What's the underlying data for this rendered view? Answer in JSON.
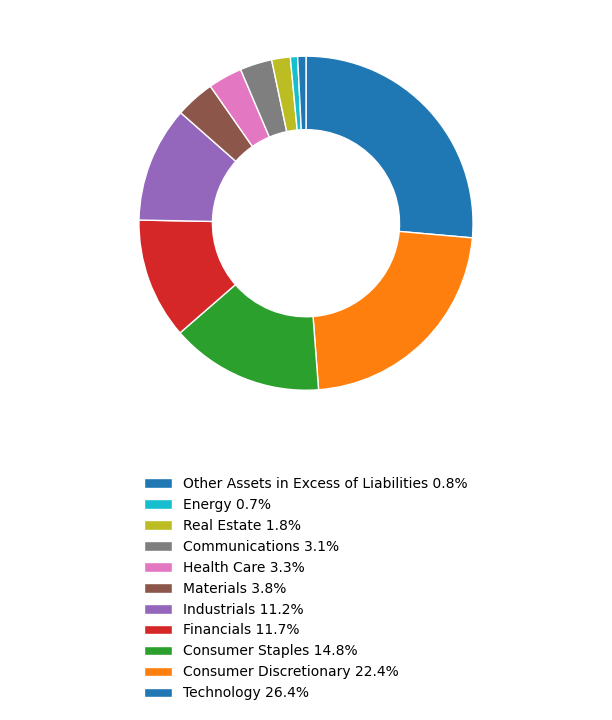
{
  "chart_data": {
    "type": "donut",
    "categories": [
      "Technology 26.4%",
      "Consumer Discretionary 22.4%",
      "Consumer Staples 14.8%",
      "Financials 11.7%",
      "Industrials 11.2%",
      "Materials 3.8%",
      "Health Care 3.3%",
      "Communications 3.1%",
      "Real Estate 1.8%",
      "Energy 0.7%",
      "Other Assets in Excess of Liabilities 0.8%"
    ],
    "values": [
      26.4,
      22.4,
      14.8,
      11.7,
      11.2,
      3.8,
      3.3,
      3.1,
      1.8,
      0.7,
      0.8
    ],
    "legend": "lower center"
  }
}
